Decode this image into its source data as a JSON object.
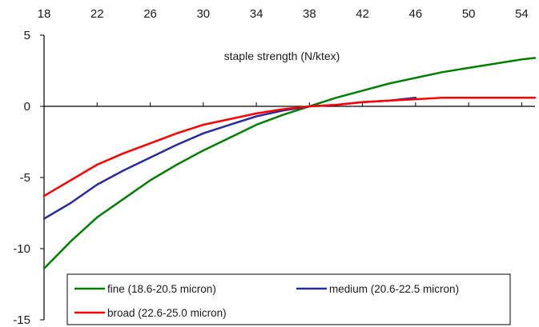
{
  "chart_data": {
    "type": "line",
    "title": "",
    "xlabel": "staple strength (N/ktex)",
    "ylabel": "",
    "x_axis_position": "top",
    "xlim": [
      18,
      55
    ],
    "ylim": [
      -15,
      5
    ],
    "x_ticks": [
      18,
      22,
      26,
      30,
      34,
      38,
      42,
      46,
      50,
      54
    ],
    "y_ticks": [
      5,
      0,
      -5,
      -10,
      -15
    ],
    "x_tick_labels": [
      "18",
      "22",
      "26",
      "30",
      "34",
      "38",
      "42",
      "46",
      "50",
      "54"
    ],
    "y_tick_labels": [
      "5",
      "0",
      "-5",
      "-10",
      "-15"
    ],
    "grid": false,
    "legend_placement": "bottom",
    "series": [
      {
        "name": "fine (18.6-20.5 micron)",
        "color": "#008000",
        "x": [
          18,
          20,
          22,
          24,
          26,
          28,
          30,
          32,
          34,
          36,
          38,
          40,
          42,
          44,
          46,
          48,
          50,
          52,
          54,
          55
        ],
        "y": [
          -11.4,
          -9.5,
          -7.8,
          -6.5,
          -5.2,
          -4.1,
          -3.1,
          -2.2,
          -1.3,
          -0.6,
          0.0,
          0.6,
          1.1,
          1.6,
          2.0,
          2.4,
          2.7,
          3.0,
          3.3,
          3.4
        ]
      },
      {
        "name": "medium (20.6-22.5 micron)",
        "color": "#2a2aa0",
        "x": [
          18,
          20,
          22,
          24,
          26,
          28,
          30,
          32,
          34,
          36,
          38,
          40,
          42,
          44,
          46
        ],
        "y": [
          -7.9,
          -6.8,
          -5.5,
          -4.5,
          -3.6,
          -2.7,
          -1.9,
          -1.3,
          -0.7,
          -0.3,
          0.0,
          0.1,
          0.3,
          0.4,
          0.6
        ]
      },
      {
        "name": "broad (22.6-25.0 micron)",
        "color": "#ff0000",
        "x": [
          18,
          20,
          22,
          24,
          26,
          28,
          30,
          32,
          34,
          36,
          38,
          40,
          42,
          44,
          46,
          48,
          50,
          52,
          54,
          55
        ],
        "y": [
          -6.3,
          -5.2,
          -4.1,
          -3.3,
          -2.6,
          -1.9,
          -1.3,
          -0.9,
          -0.5,
          -0.2,
          0.0,
          0.1,
          0.3,
          0.4,
          0.5,
          0.6,
          0.6,
          0.6,
          0.6,
          0.6
        ]
      }
    ]
  }
}
